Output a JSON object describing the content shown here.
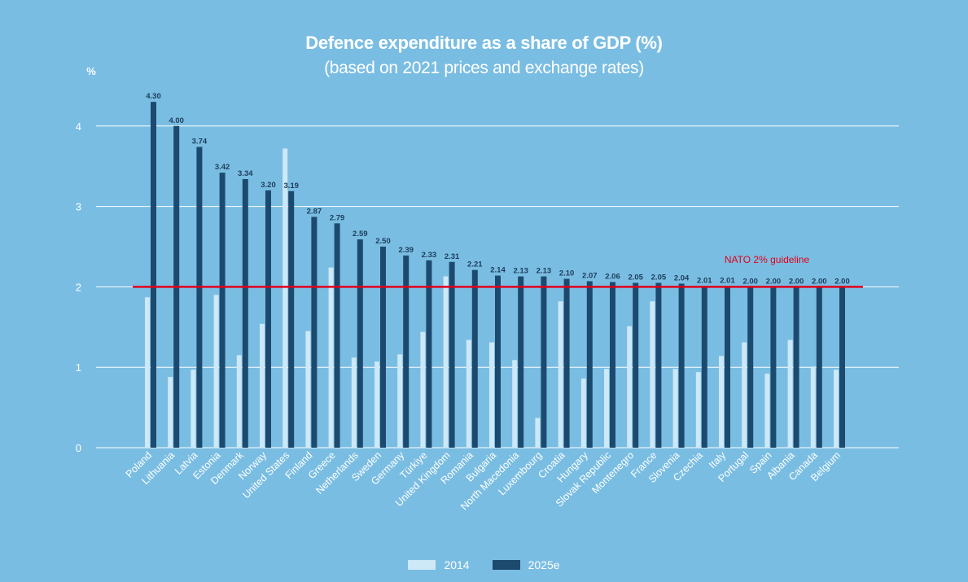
{
  "chart_data": {
    "type": "bar",
    "title": "Defence expenditure as a share of GDP (%)",
    "subtitle": "(based on 2021 prices and exchange rates)",
    "ylabel": "%",
    "xlabel": "",
    "ylim": [
      0,
      4.5
    ],
    "yticks": [
      "0",
      "1",
      "2",
      "3",
      "4"
    ],
    "categories": [
      "Poland",
      "Lithuania",
      "Latvia",
      "Estonia",
      "Denmark",
      "Norway",
      "United States",
      "Finland",
      "Greece",
      "Netherlands",
      "Sweden",
      "Germany",
      "Türkiye",
      "United Kingdom",
      "Romania",
      "Bulgaria",
      "North Macedonia",
      "Luxembourg",
      "Croatia",
      "Hungary",
      "Slovak Republic",
      "Montenegro",
      "France",
      "Slovenia",
      "Czechia",
      "Italy",
      "Portugal",
      "Spain",
      "Albania",
      "Canada",
      "Belgium"
    ],
    "series": [
      {
        "name": "2014",
        "color": "#cde8f6",
        "values": [
          1.87,
          0.88,
          0.97,
          1.9,
          1.15,
          1.54,
          3.72,
          1.45,
          2.24,
          1.12,
          1.07,
          1.16,
          1.44,
          2.13,
          1.34,
          1.31,
          1.09,
          0.37,
          1.82,
          0.86,
          0.98,
          1.51,
          1.82,
          0.98,
          0.94,
          1.14,
          1.31,
          0.92,
          1.34,
          1.01,
          0.97
        ]
      },
      {
        "name": "2025e",
        "color": "#1c4a6e",
        "values": [
          4.3,
          4.0,
          3.74,
          3.42,
          3.34,
          3.2,
          3.19,
          2.87,
          2.79,
          2.59,
          2.5,
          2.39,
          2.33,
          2.31,
          2.21,
          2.14,
          2.13,
          2.13,
          2.1,
          2.07,
          2.06,
          2.05,
          2.05,
          2.04,
          2.01,
          2.01,
          2.0,
          2.0,
          2.0,
          2.0,
          2.0
        ]
      }
    ],
    "data_labels_2025e": [
      "4.30",
      "4.00",
      "3.74",
      "3.42",
      "3.34",
      "3.20",
      "3.19",
      "2.87",
      "2.79",
      "2.59",
      "2.50",
      "2.39",
      "2.33",
      "2.31",
      "2.21",
      "2.14",
      "2.13",
      "2.13",
      "2.10",
      "2.07",
      "2.06",
      "2.05",
      "2.05",
      "2.04",
      "2.01",
      "2.01",
      "2.00",
      "2.00",
      "2.00",
      "2.00",
      "2.00"
    ],
    "reference_line": {
      "value": 2,
      "label": "NATO 2% guideline",
      "color": "#e3001b"
    },
    "grid": true,
    "legend_position": "bottom-center"
  }
}
